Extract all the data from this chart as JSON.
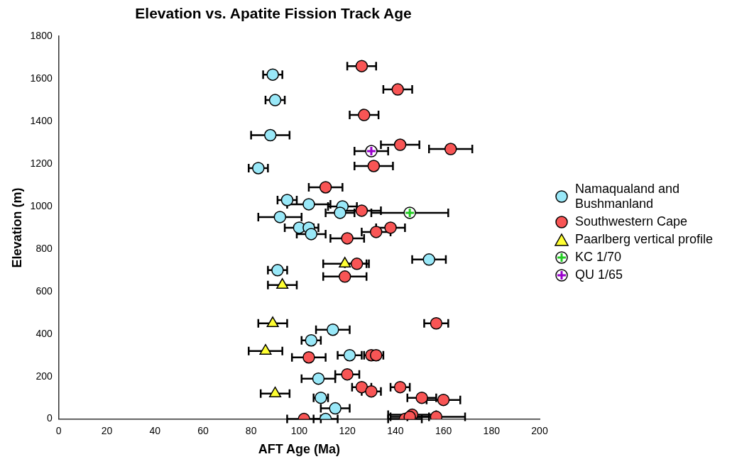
{
  "chart_data": {
    "type": "scatter",
    "title": "Elevation vs. Apatite Fission Track Age",
    "xlabel": "AFT Age (Ma)",
    "ylabel": "Elevation (m)",
    "xlim": [
      0,
      200
    ],
    "xticks": [
      0,
      20,
      40,
      60,
      80,
      100,
      120,
      140,
      160,
      180,
      200
    ],
    "ylim": [
      0,
      1800
    ],
    "yticks": [
      0,
      200,
      400,
      600,
      800,
      1000,
      1200,
      1400,
      1600,
      1800
    ],
    "grid": false,
    "legend": "right",
    "series": [
      {
        "name": "Namaqualand and Bushmanland",
        "color": "#99e8f8",
        "marker": "circle",
        "x": [
          89,
          90,
          88,
          83,
          95,
          104,
          118,
          117,
          92,
          100,
          104,
          105,
          154,
          91,
          114,
          105,
          121,
          108,
          109,
          115,
          111
        ],
        "values": [
          1620,
          1500,
          1335,
          1180,
          1030,
          1010,
          1000,
          970,
          950,
          900,
          900,
          870,
          750,
          700,
          420,
          370,
          300,
          190,
          100,
          50,
          0
        ],
        "xerrors": [
          4,
          4,
          8,
          4,
          4,
          9,
          6,
          6,
          9,
          6,
          4,
          6,
          7,
          4,
          7,
          4,
          5,
          7,
          3,
          6,
          5
        ]
      },
      {
        "name": "Southwestern Cape",
        "color": "#f85555",
        "marker": "circle",
        "x": [
          126,
          141,
          127,
          142,
          163,
          131,
          111,
          126,
          138,
          132,
          120,
          124,
          119,
          157,
          104,
          130,
          132,
          120,
          126,
          130,
          142,
          151,
          160,
          102,
          144,
          147,
          146,
          157
        ],
        "values": [
          1660,
          1550,
          1430,
          1290,
          1270,
          1190,
          1090,
          980,
          900,
          880,
          850,
          730,
          670,
          450,
          290,
          300,
          300,
          210,
          150,
          130,
          150,
          100,
          90,
          0,
          0,
          20,
          10,
          10
        ],
        "xerrors": [
          6,
          6,
          6,
          8,
          9,
          8,
          7,
          8,
          6,
          6,
          7,
          5,
          9,
          5,
          7,
          3,
          3,
          5,
          4,
          4,
          4,
          6,
          7,
          7,
          7,
          10,
          8,
          12
        ]
      },
      {
        "name": "Paarlberg vertical profile",
        "color": "#ffff33",
        "marker": "triangle",
        "x": [
          119,
          93,
          89,
          86,
          90
        ],
        "values": [
          730,
          630,
          450,
          320,
          120
        ],
        "xerrors": [
          9,
          6,
          6,
          7,
          6
        ]
      },
      {
        "name": "KC 1/70",
        "color": "#22cc22",
        "marker": "cross",
        "x": [
          146
        ],
        "values": [
          970
        ],
        "xerrors": [
          16
        ]
      },
      {
        "name": "QU 1/65",
        "color": "#9900cc",
        "marker": "cross",
        "x": [
          130
        ],
        "values": [
          1260
        ],
        "xerrors": [
          7
        ]
      }
    ]
  }
}
